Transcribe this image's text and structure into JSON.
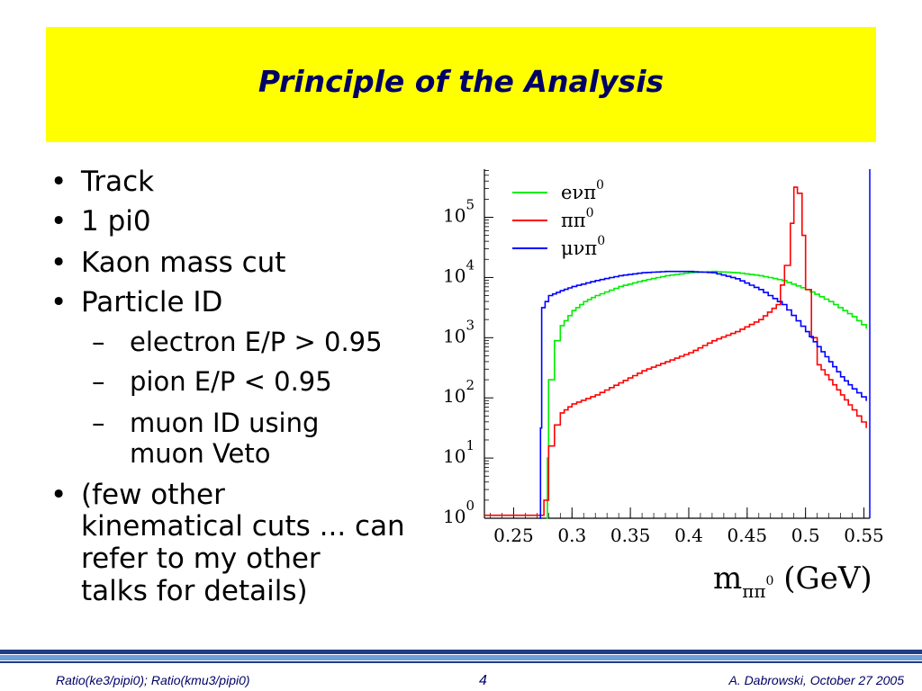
{
  "slide": {
    "title": "Principle of the Analysis",
    "bullets": [
      {
        "text": "Track"
      },
      {
        "text": "1 pi0"
      },
      {
        "text": "Kaon mass cut"
      },
      {
        "text": "Particle ID"
      }
    ],
    "sub_bullets": [
      "electron E/P > 0.95",
      "pion E/P < 0.95",
      "muon ID using",
      "muon Veto"
    ],
    "last_bullet": [
      "(few other",
      "kinematical cuts ... can",
      "refer to my other",
      "talks for details)"
    ],
    "bullet_char": "•",
    "dash_char": "–"
  },
  "footer": {
    "left": "Ratio(ke3/pipi0); Ratio(kmu3/pipi0)",
    "page": "4",
    "right": "A. Dabrowski, October 27 2005"
  },
  "chart_data": {
    "type": "line",
    "xlabel": "m",
    "xlabel_sub": "ππ",
    "xlabel_sup": "0",
    "xlabel_unit": " (GeV)",
    "xlim": [
      0.225,
      0.555
    ],
    "ylim_log10": [
      0,
      5.8
    ],
    "log_y": true,
    "x_ticks": [
      "0.25",
      "0.3",
      "0.35",
      "0.4",
      "0.45",
      "0.5",
      "0.55"
    ],
    "x_tick_values": [
      0.25,
      0.3,
      0.35,
      0.4,
      0.45,
      0.5,
      0.55
    ],
    "y_ticks": [
      {
        "base": "10",
        "exp": "0",
        "value": 0
      },
      {
        "base": "10",
        "exp": "1",
        "value": 1
      },
      {
        "base": "10",
        "exp": "2",
        "value": 2
      },
      {
        "base": "10",
        "exp": "3",
        "value": 3
      },
      {
        "base": "10",
        "exp": "4",
        "value": 4
      },
      {
        "base": "10",
        "exp": "5",
        "value": 5
      }
    ],
    "legend_position": "top-left",
    "series": [
      {
        "name": "eνπ",
        "sup": "0",
        "color": "#00ee00",
        "x": [
          0.278,
          0.279,
          0.28,
          0.285,
          0.29,
          0.3,
          0.31,
          0.32,
          0.34,
          0.36,
          0.38,
          0.4,
          0.42,
          0.44,
          0.46,
          0.48,
          0.5,
          0.52,
          0.54,
          0.552
        ],
        "log10_y": [
          0.0,
          1.0,
          2.3,
          2.95,
          3.2,
          3.45,
          3.6,
          3.7,
          3.85,
          3.95,
          4.03,
          4.08,
          4.1,
          4.08,
          4.03,
          3.95,
          3.8,
          3.6,
          3.35,
          3.15
        ]
      },
      {
        "name": "ππ",
        "sup": "0",
        "color": "#ff0000",
        "x": [
          0.225,
          0.275,
          0.276,
          0.28,
          0.285,
          0.29,
          0.3,
          0.32,
          0.34,
          0.36,
          0.38,
          0.4,
          0.42,
          0.44,
          0.46,
          0.475,
          0.482,
          0.487,
          0.49,
          0.493,
          0.497,
          0.5,
          0.505,
          0.51,
          0.52,
          0.53,
          0.54,
          0.552
        ],
        "log10_y": [
          0.05,
          0.05,
          0.3,
          1.2,
          1.55,
          1.75,
          1.9,
          2.05,
          2.25,
          2.45,
          2.6,
          2.75,
          2.95,
          3.1,
          3.3,
          3.55,
          4.2,
          4.9,
          5.5,
          5.4,
          4.7,
          3.8,
          3.0,
          2.55,
          2.3,
          2.05,
          1.8,
          1.5
        ]
      },
      {
        "name": "μνπ",
        "sup": "0",
        "color": "#0000ff",
        "x": [
          0.272,
          0.273,
          0.274,
          0.28,
          0.29,
          0.3,
          0.32,
          0.34,
          0.36,
          0.38,
          0.4,
          0.42,
          0.44,
          0.46,
          0.48,
          0.5,
          0.51,
          0.52,
          0.53,
          0.54,
          0.552
        ],
        "log10_y": [
          0.0,
          1.5,
          3.5,
          3.7,
          3.78,
          3.85,
          3.95,
          4.03,
          4.08,
          4.1,
          4.1,
          4.08,
          3.98,
          3.8,
          3.55,
          3.1,
          2.85,
          2.6,
          2.35,
          2.15,
          1.95
        ]
      }
    ]
  }
}
